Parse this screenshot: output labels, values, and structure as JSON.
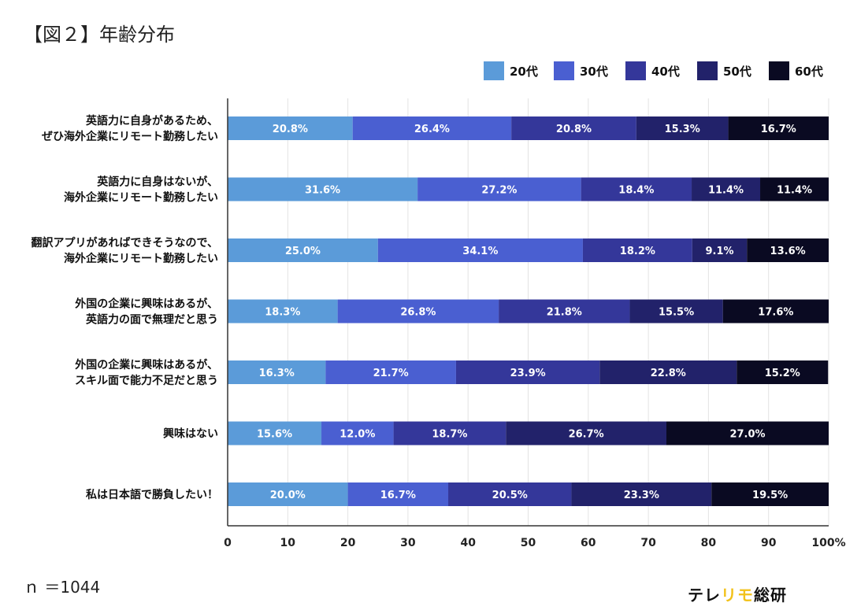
{
  "figure_title": "【図２】年齢分布",
  "sample_note": "ｎ ＝1044",
  "brand": {
    "part1": "テレ",
    "part2": "リモ",
    "part3": "総研"
  },
  "chart_data": {
    "type": "bar",
    "orientation": "horizontal",
    "stacked": true,
    "categories": [
      [
        "英語力に自身があるため、",
        "ぜひ海外企業にリモート勤務したい"
      ],
      [
        "英語力に自身はないが、",
        "海外企業にリモート勤務したい"
      ],
      [
        "翻訳アプリがあればできそうなので、",
        "海外企業にリモート勤務したい"
      ],
      [
        "外国の企業に興味はあるが、",
        "英語力の面で無理だと思う"
      ],
      [
        "外国の企業に興味はあるが、",
        "スキル面で能力不足だと思う"
      ],
      [
        "興味はない"
      ],
      [
        "私は日本語で勝負したい！"
      ]
    ],
    "series": [
      {
        "name": "20代",
        "color": "#5b9bd9",
        "values": [
          20.8,
          31.6,
          25.0,
          18.3,
          16.3,
          15.6,
          20.0
        ]
      },
      {
        "name": "30代",
        "color": "#4a5fd1",
        "values": [
          26.4,
          27.2,
          34.1,
          26.8,
          21.7,
          12.0,
          16.7
        ]
      },
      {
        "name": "40代",
        "color": "#34379a",
        "values": [
          20.8,
          18.4,
          18.2,
          21.8,
          23.9,
          18.7,
          20.5
        ]
      },
      {
        "name": "50代",
        "color": "#22226a",
        "values": [
          15.3,
          11.4,
          9.1,
          15.5,
          22.8,
          26.7,
          23.3
        ]
      },
      {
        "name": "60代",
        "color": "#0a0a22",
        "values": [
          16.7,
          11.4,
          13.6,
          17.6,
          15.2,
          27.0,
          19.5
        ]
      }
    ],
    "x_ticks": [
      "0",
      "10",
      "20",
      "30",
      "40",
      "50",
      "60",
      "70",
      "80",
      "90",
      "100%"
    ],
    "xlim": [
      0,
      100
    ],
    "grid": true,
    "legend_position": "top-right"
  }
}
